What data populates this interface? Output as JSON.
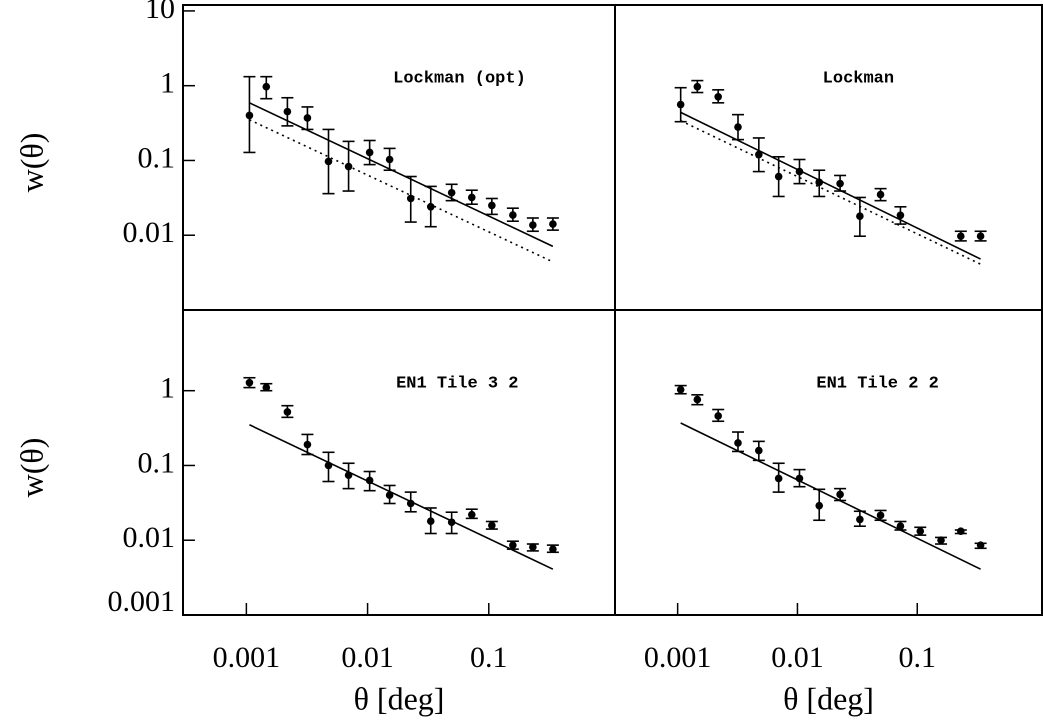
{
  "chart_data": [
    {
      "type": "scatter",
      "title": "Lockman (opt)",
      "ylabel": "w(θ)",
      "xlog": true,
      "ylog": true,
      "xlim": [
        0.0003,
        1.1
      ],
      "ylim": [
        0.001,
        12
      ],
      "yticks": [
        0.01,
        0.1,
        1,
        10
      ],
      "series": [
        {
          "kind": "errorbar",
          "color": "#000000",
          "x": [
            0.00106,
            0.00146,
            0.00218,
            0.00319,
            0.00476,
            0.00697,
            0.0104,
            0.0152,
            0.0227,
            0.0332,
            0.0494,
            0.0724,
            0.106,
            0.158,
            0.231,
            0.338
          ],
          "values": [
            0.4,
            0.97,
            0.45,
            0.37,
            0.097,
            0.083,
            0.128,
            0.103,
            0.031,
            0.024,
            0.037,
            0.032,
            0.025,
            0.0186,
            0.0137,
            0.0141
          ],
          "lower": [
            0.128,
            0.67,
            0.29,
            0.26,
            0.036,
            0.039,
            0.088,
            0.074,
            0.015,
            0.013,
            0.029,
            0.026,
            0.019,
            0.0154,
            0.0113,
            0.0117
          ],
          "upper": [
            1.32,
            1.32,
            0.69,
            0.52,
            0.26,
            0.18,
            0.185,
            0.145,
            0.061,
            0.045,
            0.048,
            0.04,
            0.031,
            0.023,
            0.017,
            0.017
          ]
        },
        {
          "kind": "line",
          "style": "solid",
          "color": "#000000",
          "x": [
            0.00106,
            0.338
          ],
          "values": [
            0.59,
            0.0071
          ]
        },
        {
          "kind": "line",
          "style": "dotted",
          "color": "#000000",
          "x": [
            0.00106,
            0.338
          ],
          "values": [
            0.35,
            0.0044
          ]
        }
      ]
    },
    {
      "type": "scatter",
      "title": "Lockman",
      "xlog": true,
      "ylog": true,
      "xlim": [
        0.0003,
        1.1
      ],
      "ylim": [
        0.001,
        12
      ],
      "series": [
        {
          "kind": "errorbar",
          "color": "#000000",
          "x": [
            0.00106,
            0.00146,
            0.00218,
            0.00319,
            0.00476,
            0.00697,
            0.0104,
            0.0152,
            0.0227,
            0.0332,
            0.0494,
            0.0724,
            0.231,
            0.338
          ],
          "values": [
            0.56,
            0.97,
            0.71,
            0.28,
            0.12,
            0.061,
            0.071,
            0.051,
            0.049,
            0.018,
            0.035,
            0.0185,
            0.0097,
            0.0097
          ],
          "lower": [
            0.33,
            0.81,
            0.59,
            0.19,
            0.071,
            0.033,
            0.049,
            0.033,
            0.039,
            0.0097,
            0.029,
            0.0141,
            0.0084,
            0.0084
          ],
          "upper": [
            0.94,
            1.17,
            0.88,
            0.41,
            0.2,
            0.112,
            0.103,
            0.074,
            0.063,
            0.032,
            0.042,
            0.024,
            0.0113,
            0.0113
          ]
        },
        {
          "kind": "line",
          "style": "solid",
          "color": "#000000",
          "x": [
            0.00106,
            0.338
          ],
          "values": [
            0.44,
            0.0048
          ]
        },
        {
          "kind": "line",
          "style": "dotted",
          "color": "#000000",
          "x": [
            0.00106,
            0.338
          ],
          "values": [
            0.34,
            0.0041
          ]
        }
      ]
    },
    {
      "type": "scatter",
      "title": "EN1 Tile 3 2",
      "ylabel": "w(θ)",
      "xlabel": "θ [deg]",
      "xlog": true,
      "ylog": true,
      "xlim": [
        0.0003,
        1.1
      ],
      "ylim": [
        0.001,
        12
      ],
      "xticks": [
        0.001,
        0.01,
        0.1
      ],
      "yticks": [
        0.001,
        0.01,
        0.1,
        1
      ],
      "series": [
        {
          "kind": "errorbar",
          "color": "#000000",
          "x": [
            0.00106,
            0.00146,
            0.00218,
            0.00319,
            0.00476,
            0.00697,
            0.0104,
            0.0152,
            0.0227,
            0.0332,
            0.0494,
            0.0724,
            0.106,
            0.158,
            0.231,
            0.338
          ],
          "values": [
            1.28,
            1.1,
            0.52,
            0.19,
            0.1,
            0.074,
            0.063,
            0.04,
            0.031,
            0.018,
            0.0174,
            0.022,
            0.0158,
            0.0086,
            0.0081,
            0.0076
          ],
          "lower": [
            1.1,
            1.0,
            0.44,
            0.14,
            0.061,
            0.049,
            0.046,
            0.031,
            0.024,
            0.0123,
            0.0123,
            0.0196,
            0.0141,
            0.0076,
            0.0072,
            0.0069
          ],
          "upper": [
            1.49,
            1.24,
            0.63,
            0.26,
            0.15,
            0.107,
            0.083,
            0.054,
            0.044,
            0.027,
            0.0237,
            0.026,
            0.0178,
            0.0097,
            0.0089,
            0.0086
          ]
        },
        {
          "kind": "line",
          "style": "solid",
          "color": "#000000",
          "x": [
            0.00106,
            0.338
          ],
          "values": [
            0.35,
            0.0041
          ]
        }
      ]
    },
    {
      "type": "scatter",
      "title": "EN1 Tile 2 2",
      "xlabel": "θ [deg]",
      "xlog": true,
      "ylog": true,
      "xlim": [
        0.0003,
        1.1
      ],
      "ylim": [
        0.001,
        12
      ],
      "xticks": [
        0.001,
        0.01,
        0.1
      ],
      "series": [
        {
          "kind": "errorbar",
          "color": "#000000",
          "x": [
            0.00106,
            0.00146,
            0.00218,
            0.00319,
            0.00476,
            0.00697,
            0.0104,
            0.0152,
            0.0227,
            0.0332,
            0.0494,
            0.0724,
            0.106,
            0.158,
            0.231,
            0.338
          ],
          "values": [
            1.03,
            0.76,
            0.46,
            0.2,
            0.158,
            0.067,
            0.067,
            0.029,
            0.041,
            0.019,
            0.0215,
            0.0154,
            0.0132,
            0.01,
            0.0132,
            0.0086
          ],
          "lower": [
            0.91,
            0.65,
            0.39,
            0.154,
            0.117,
            0.044,
            0.052,
            0.0185,
            0.034,
            0.0154,
            0.0185,
            0.0137,
            0.0117,
            0.0089,
            0.0123,
            0.0078
          ],
          "upper": [
            1.17,
            0.88,
            0.56,
            0.28,
            0.21,
            0.107,
            0.088,
            0.048,
            0.049,
            0.0244,
            0.025,
            0.0178,
            0.0149,
            0.0109,
            0.0137,
            0.0091
          ]
        },
        {
          "kind": "line",
          "style": "solid",
          "color": "#000000",
          "x": [
            0.00106,
            0.338
          ],
          "values": [
            0.37,
            0.0041
          ]
        }
      ]
    }
  ]
}
